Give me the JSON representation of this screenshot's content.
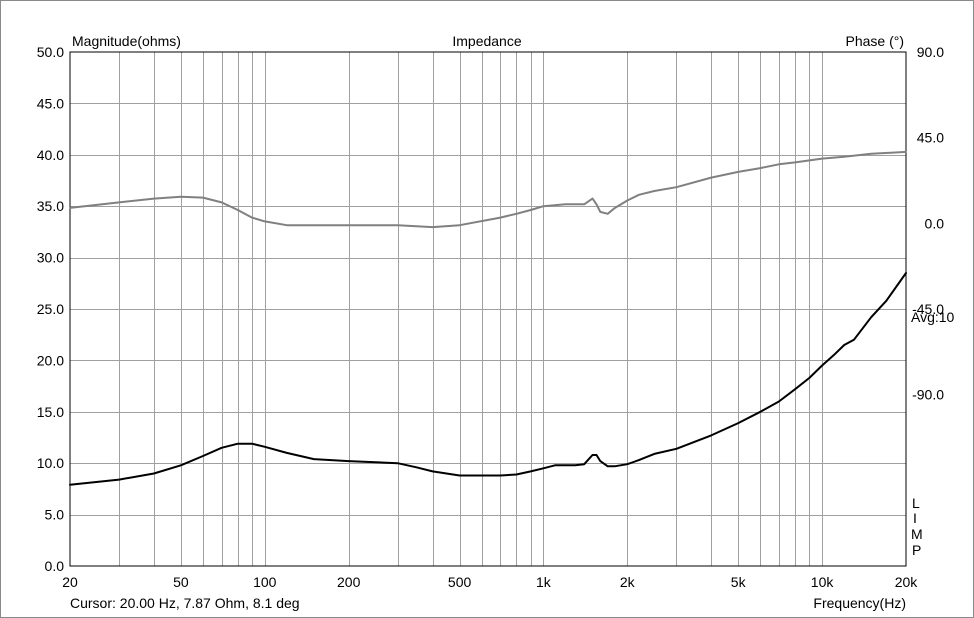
{
  "chart_data": {
    "type": "line",
    "title": "Impedance",
    "ylabel_left": "Magnitude(ohms)",
    "ylabel_right": "Phase (°)",
    "xlabel": "Frequency(Hz)",
    "x_scale": "log",
    "xlim": [
      20,
      20000
    ],
    "ylim": [
      0,
      50
    ],
    "ylim_right": [
      -180,
      90
    ],
    "grid": true,
    "x_tick_values": [
      20,
      50,
      100,
      200,
      500,
      1000,
      2000,
      5000,
      10000,
      20000
    ],
    "x_tick_labels": [
      "20",
      "50",
      "100",
      "200",
      "500",
      "1k",
      "2k",
      "5k",
      "10k",
      "20k"
    ],
    "y_left_tick_values": [
      0,
      5,
      10,
      15,
      20,
      25,
      30,
      35,
      40,
      45,
      50
    ],
    "y_left_tick_labels": [
      "0.0",
      "5.0",
      "10.0",
      "15.0",
      "20.0",
      "25.0",
      "30.0",
      "35.0",
      "40.0",
      "45.0",
      "50.0"
    ],
    "y_right_tick_values": [
      -90,
      -45,
      0,
      45,
      90
    ],
    "y_right_tick_labels": [
      "-90.0",
      "-45.0",
      "0.0",
      "45.0",
      "90.0"
    ],
    "annotations": {
      "avg": "Avg:10",
      "limp": [
        "L",
        "I",
        "M",
        "P"
      ],
      "cursor": "Cursor: 20.00 Hz, 7.87 Ohm, 8.1 deg"
    },
    "series": [
      {
        "key": "magnitude",
        "axis": "left",
        "color": "#000000",
        "x": [
          20,
          30,
          40,
          50,
          60,
          70,
          80,
          90,
          100,
          120,
          150,
          200,
          300,
          350,
          400,
          500,
          700,
          800,
          900,
          1000,
          1100,
          1200,
          1300,
          1400,
          1500,
          1550,
          1600,
          1700,
          1800,
          2000,
          2200,
          2500,
          3000,
          4000,
          5000,
          6000,
          7000,
          8000,
          9000,
          10000,
          11000,
          12000,
          13000,
          15000,
          17000,
          20000
        ],
        "values": [
          7.9,
          8.4,
          9.0,
          9.8,
          10.7,
          11.5,
          11.9,
          11.9,
          11.6,
          11.0,
          10.4,
          10.2,
          10.0,
          9.6,
          9.2,
          8.8,
          8.8,
          8.9,
          9.2,
          9.5,
          9.8,
          9.8,
          9.8,
          9.9,
          10.8,
          10.8,
          10.2,
          9.7,
          9.7,
          9.9,
          10.3,
          10.9,
          11.4,
          12.7,
          13.9,
          15.0,
          16.0,
          17.2,
          18.3,
          19.5,
          20.5,
          21.5,
          22.0,
          24.2,
          25.8,
          28.5
        ]
      },
      {
        "key": "phase",
        "axis": "right",
        "color": "#808080",
        "x": [
          20,
          30,
          40,
          50,
          60,
          70,
          80,
          90,
          100,
          120,
          150,
          200,
          300,
          400,
          500,
          700,
          800,
          900,
          1000,
          1200,
          1400,
          1500,
          1550,
          1600,
          1700,
          1800,
          2000,
          2200,
          2500,
          3000,
          4000,
          5000,
          6000,
          7000,
          8000,
          10000,
          12000,
          15000,
          20000
        ],
        "values": [
          8.1,
          11,
          13,
          14,
          13.5,
          11,
          7,
          3,
          1,
          -1,
          -1,
          -1,
          -1,
          -2,
          -1,
          3,
          5,
          7,
          9,
          10,
          10,
          13,
          10,
          6,
          5,
          8,
          12,
          15,
          17,
          19,
          24,
          27,
          29,
          31,
          32,
          34,
          35,
          36.5,
          37.5
        ]
      }
    ]
  }
}
